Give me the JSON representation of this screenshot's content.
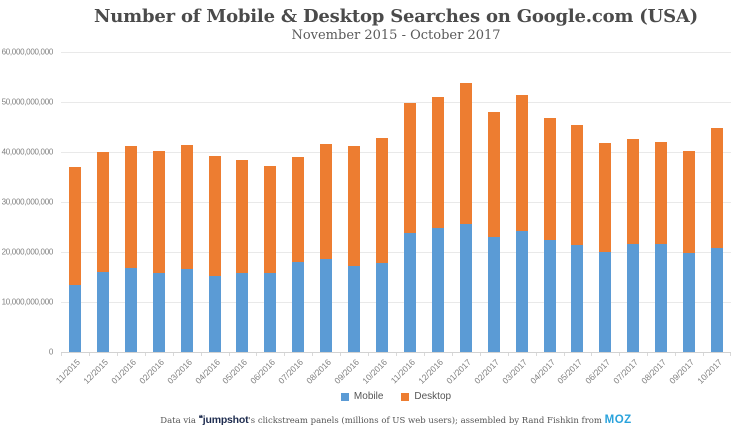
{
  "header": {
    "title": "Number of Mobile & Desktop Searches on Google.com (USA)",
    "subtitle": "November 2015 - October 2017"
  },
  "footer": {
    "prefix": "Data via ",
    "jumpshot_mark": "❝",
    "jumpshot_logo": "jumpshot",
    "middle": "'s clickstream panels (millions of US web users); assembled by Rand Fishkin from ",
    "moz_logo": "MOZ"
  },
  "colors": {
    "mobile": "#5b9bd5",
    "desktop": "#ed7d31",
    "gridline": "#e9e9e9",
    "axis_text": "#7f7f7f",
    "title_text": "#4b4b4b",
    "jumpshot_navy": "#1d2b4e",
    "moz_blue": "#2aa3dc"
  },
  "chart_data": {
    "type": "bar",
    "stacked": true,
    "title": "Number of Mobile & Desktop Searches on Google.com (USA)",
    "subtitle": "November 2015 - October 2017",
    "xlabel": "",
    "ylabel": "",
    "ylim": [
      0,
      60000000000
    ],
    "ytick_step": 10000000000,
    "ytick_labels": [
      "0",
      "10,000,000,000",
      "20,000,000,000",
      "30,000,000,000",
      "40,000,000,000",
      "50,000,000,000",
      "60,000,000,000"
    ],
    "grid": true,
    "legend_position": "bottom",
    "categories": [
      "11/2015",
      "12/2015",
      "01/2016",
      "02/2016",
      "03/2016",
      "04/2016",
      "05/2016",
      "06/2016",
      "07/2016",
      "08/2016",
      "09/2016",
      "10/2016",
      "11/2016",
      "12/2016",
      "01/2017",
      "02/2017",
      "03/2017",
      "04/2017",
      "05/2017",
      "06/2017",
      "07/2017",
      "08/2017",
      "09/2017",
      "10/2017"
    ],
    "series": [
      {
        "name": "Mobile",
        "color": "#5b9bd5",
        "values": [
          13500000000,
          16000000000,
          16800000000,
          15800000000,
          16600000000,
          15200000000,
          15800000000,
          15800000000,
          18000000000,
          18600000000,
          17300000000,
          17800000000,
          23800000000,
          24800000000,
          25600000000,
          23000000000,
          24300000000,
          22400000000,
          21400000000,
          20000000000,
          21600000000,
          21600000000,
          19800000000,
          20800000000
        ]
      },
      {
        "name": "Desktop",
        "color": "#ed7d31",
        "values": [
          23500000000,
          24000000000,
          24400000000,
          24400000000,
          24900000000,
          24000000000,
          22600000000,
          21400000000,
          21100000000,
          23000000000,
          24000000000,
          25000000000,
          26000000000,
          26200000000,
          28200000000,
          25000000000,
          27100000000,
          24400000000,
          24100000000,
          21800000000,
          21000000000,
          20400000000,
          20400000000,
          24000000000
        ]
      }
    ]
  }
}
